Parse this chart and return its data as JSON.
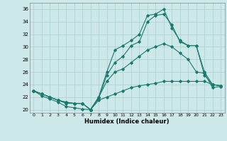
{
  "xlabel": "Humidex (Indice chaleur)",
  "xlim": [
    -0.5,
    23.5
  ],
  "ylim": [
    19.5,
    37.0
  ],
  "xticks": [
    0,
    1,
    2,
    3,
    4,
    5,
    6,
    7,
    8,
    9,
    10,
    11,
    12,
    13,
    14,
    15,
    16,
    17,
    18,
    19,
    20,
    21,
    22,
    23
  ],
  "yticks": [
    20,
    22,
    24,
    26,
    28,
    30,
    32,
    34,
    36
  ],
  "bg_color": "#cce8e8",
  "line_color": "#1a7a6e",
  "grid_color": "#aacece",
  "lines": [
    {
      "x": [
        0,
        1,
        2,
        3,
        4,
        5,
        6,
        7,
        8,
        9,
        10,
        11,
        12,
        13,
        14,
        15,
        16,
        17,
        18,
        19,
        20,
        21,
        22,
        23
      ],
      "y": [
        23.0,
        22.5,
        22.0,
        21.5,
        21.2,
        21.0,
        21.0,
        20.0,
        22.0,
        26.0,
        29.5,
        30.2,
        31.0,
        32.0,
        35.0,
        35.2,
        36.0,
        33.0,
        31.0,
        30.2,
        30.2,
        26.0,
        24.0,
        23.8
      ]
    },
    {
      "x": [
        0,
        1,
        2,
        3,
        4,
        5,
        6,
        7,
        8,
        9,
        10,
        11,
        12,
        13,
        14,
        15,
        16,
        17,
        18,
        19,
        20,
        21,
        22,
        23
      ],
      "y": [
        23.0,
        22.5,
        22.0,
        21.5,
        21.0,
        21.0,
        21.0,
        20.0,
        21.8,
        25.5,
        27.5,
        28.5,
        30.2,
        30.8,
        34.0,
        35.0,
        35.2,
        33.5,
        30.8,
        30.2,
        30.2,
        25.5,
        24.0,
        23.8
      ]
    },
    {
      "x": [
        0,
        1,
        2,
        3,
        4,
        5,
        6,
        7,
        8,
        9,
        10,
        11,
        12,
        13,
        14,
        15,
        16,
        17,
        18,
        19,
        20,
        21,
        22,
        23
      ],
      "y": [
        23.0,
        22.5,
        22.0,
        21.5,
        21.2,
        21.0,
        21.0,
        20.0,
        22.0,
        24.5,
        26.0,
        26.5,
        27.5,
        28.5,
        29.5,
        30.0,
        30.5,
        30.0,
        29.0,
        28.0,
        26.0,
        25.8,
        23.5,
        23.7
      ]
    },
    {
      "x": [
        0,
        1,
        2,
        3,
        4,
        5,
        6,
        7,
        8,
        9,
        10,
        11,
        12,
        13,
        14,
        15,
        16,
        17,
        18,
        19,
        20,
        21,
        22,
        23
      ],
      "y": [
        23.0,
        22.2,
        21.7,
        21.2,
        20.5,
        20.3,
        20.1,
        20.0,
        21.5,
        22.0,
        22.5,
        23.0,
        23.5,
        23.8,
        24.0,
        24.2,
        24.5,
        24.5,
        24.5,
        24.5,
        24.5,
        24.5,
        24.0,
        23.8
      ]
    }
  ]
}
